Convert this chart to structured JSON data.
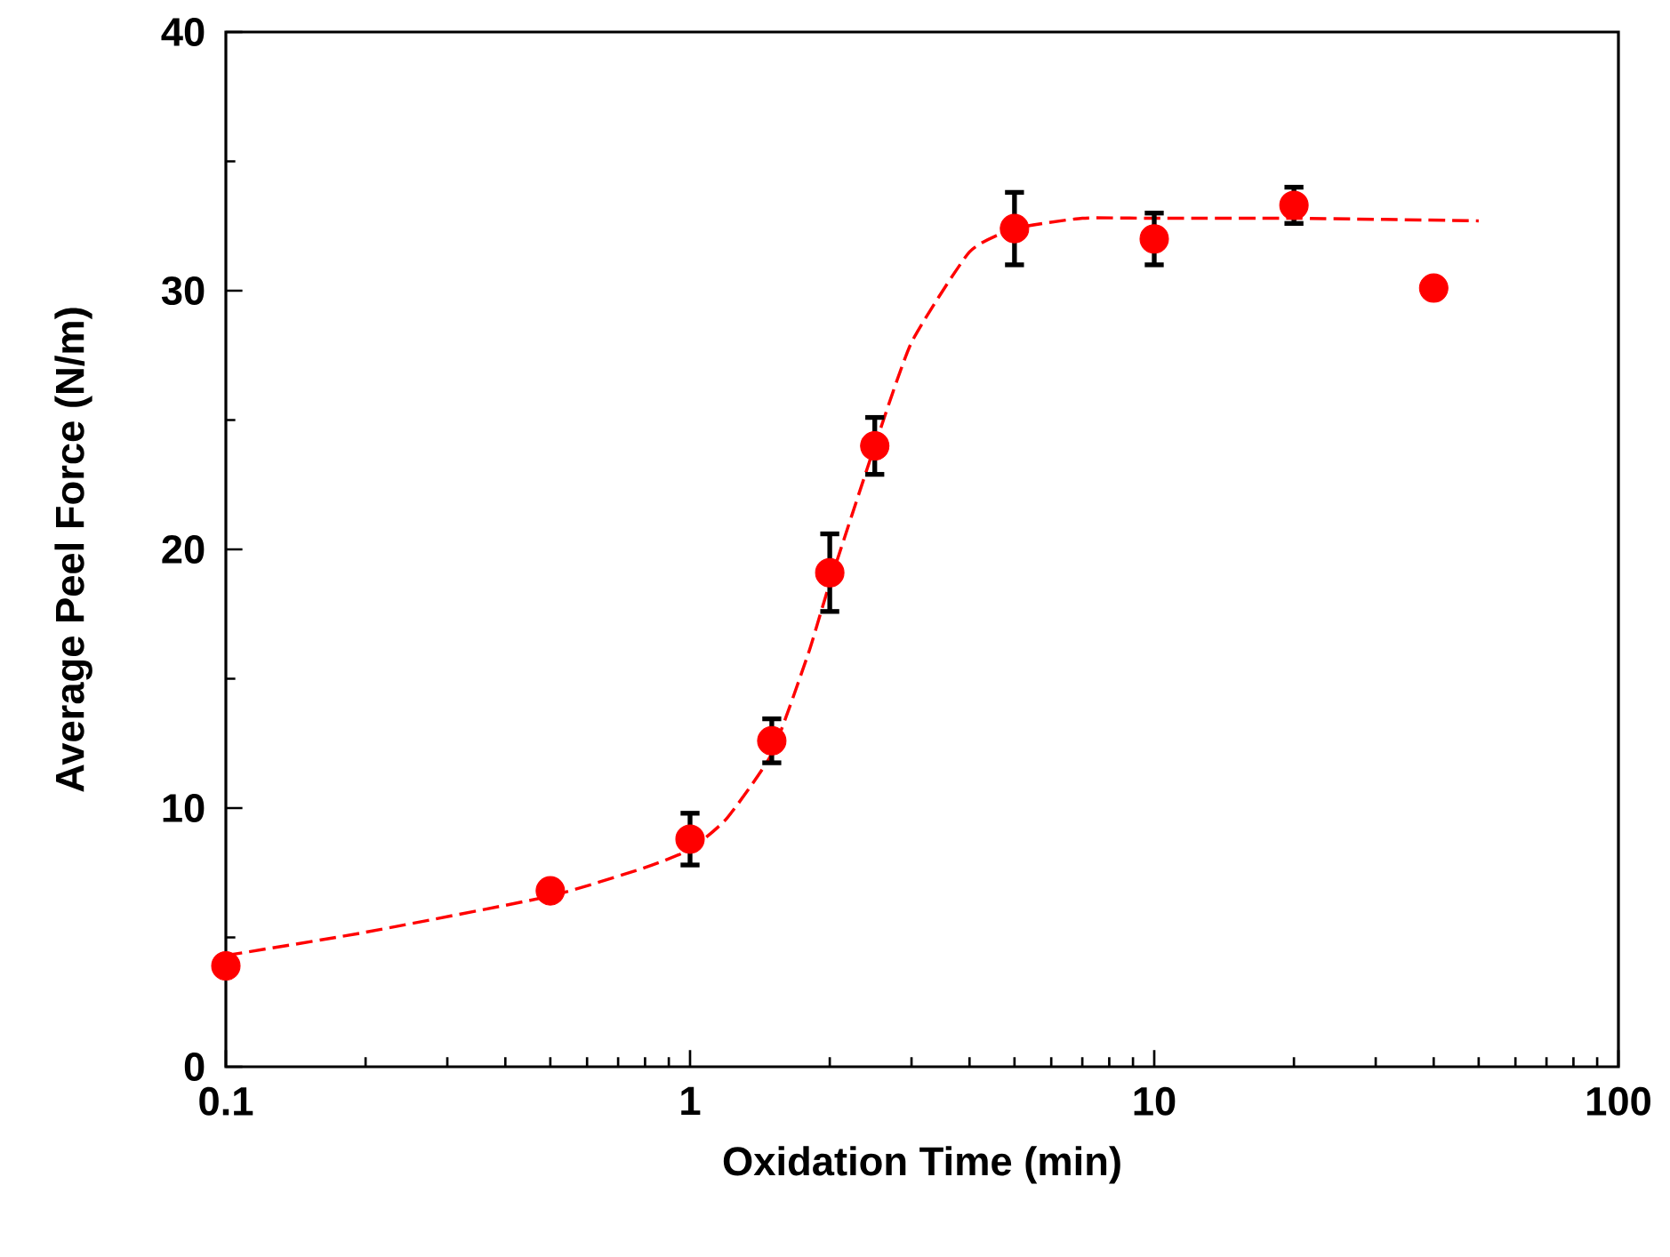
{
  "chart_data": {
    "type": "scatter",
    "xlabel": "Oxidation Time (min)",
    "ylabel": "Average Peel Force (N/m)",
    "log": "x",
    "xlim": [
      0.1,
      100
    ],
    "xticks": [
      0.1,
      1,
      10,
      100
    ],
    "ylim": [
      0,
      40
    ],
    "yticks": [
      0,
      10,
      20,
      30,
      40
    ],
    "grid": false,
    "legend": false,
    "series": [
      {
        "marker": "circle",
        "color": "#ff0000",
        "x": [
          0.1,
          0.5,
          1,
          1.5,
          2,
          2.5,
          5,
          10,
          20,
          40
        ],
        "values": [
          3.9,
          6.8,
          8.8,
          12.6,
          19.1,
          24.0,
          32.4,
          32.0,
          33.3,
          30.1
        ],
        "errors": [
          null,
          null,
          1.0,
          0.85,
          1.5,
          1.1,
          1.4,
          1.0,
          0.7,
          null
        ]
      },
      {
        "type": "line",
        "color": "#ff0000",
        "line_style": "dashed",
        "marker": "none",
        "x": [
          0.1,
          0.2,
          0.5,
          0.8,
          1,
          1.2,
          1.5,
          1.8,
          2,
          2.5,
          3,
          4,
          5,
          7,
          10,
          20,
          50
        ],
        "values": [
          4.3,
          5.2,
          6.6,
          7.7,
          8.4,
          9.6,
          12.1,
          16.0,
          18.7,
          24.0,
          28.0,
          31.5,
          32.4,
          32.8,
          32.8,
          32.8,
          32.7
        ]
      }
    ]
  }
}
